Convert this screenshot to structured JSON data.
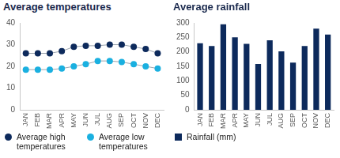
{
  "chart_data": [
    {
      "type": "line",
      "title": "Average temperatures",
      "categories": [
        "JAN",
        "FEB",
        "MAR",
        "APR",
        "MAY",
        "JUN",
        "JUL",
        "AUG",
        "SEP",
        "OCT",
        "NOV",
        "DEC"
      ],
      "series": [
        {
          "name": "Average high temperatures",
          "color": "#0d2a5c",
          "marker": "circle",
          "values": [
            26,
            26,
            26,
            27,
            29,
            29.5,
            29.5,
            30,
            30,
            29,
            28,
            26
          ]
        },
        {
          "name": "Average low temperatures",
          "color": "#1ab0e0",
          "marker": "circle",
          "values": [
            18.5,
            18.5,
            18.5,
            19,
            20,
            21,
            22.5,
            22.5,
            22,
            21,
            20,
            19
          ]
        }
      ],
      "ylim": [
        0,
        40
      ],
      "yticks": [
        0,
        10,
        20,
        30,
        40
      ],
      "grid": false,
      "legend": "bottom"
    },
    {
      "type": "bar",
      "title": "Average rainfall",
      "categories": [
        "JAN",
        "FEB",
        "MAR",
        "APR",
        "MAY",
        "JUN",
        "JUL",
        "AUG",
        "SEP",
        "OCT",
        "NOV",
        "DEC"
      ],
      "series": [
        {
          "name": "Rainfall (mm)",
          "color": "#0d2a5c",
          "values": [
            230,
            220,
            295,
            250,
            228,
            158,
            240,
            202,
            163,
            220,
            280,
            260
          ]
        }
      ],
      "ylim": [
        0,
        300
      ],
      "yticks": [
        0,
        50,
        100,
        150,
        200,
        250,
        300
      ],
      "grid": false,
      "legend": "bottom"
    }
  ]
}
